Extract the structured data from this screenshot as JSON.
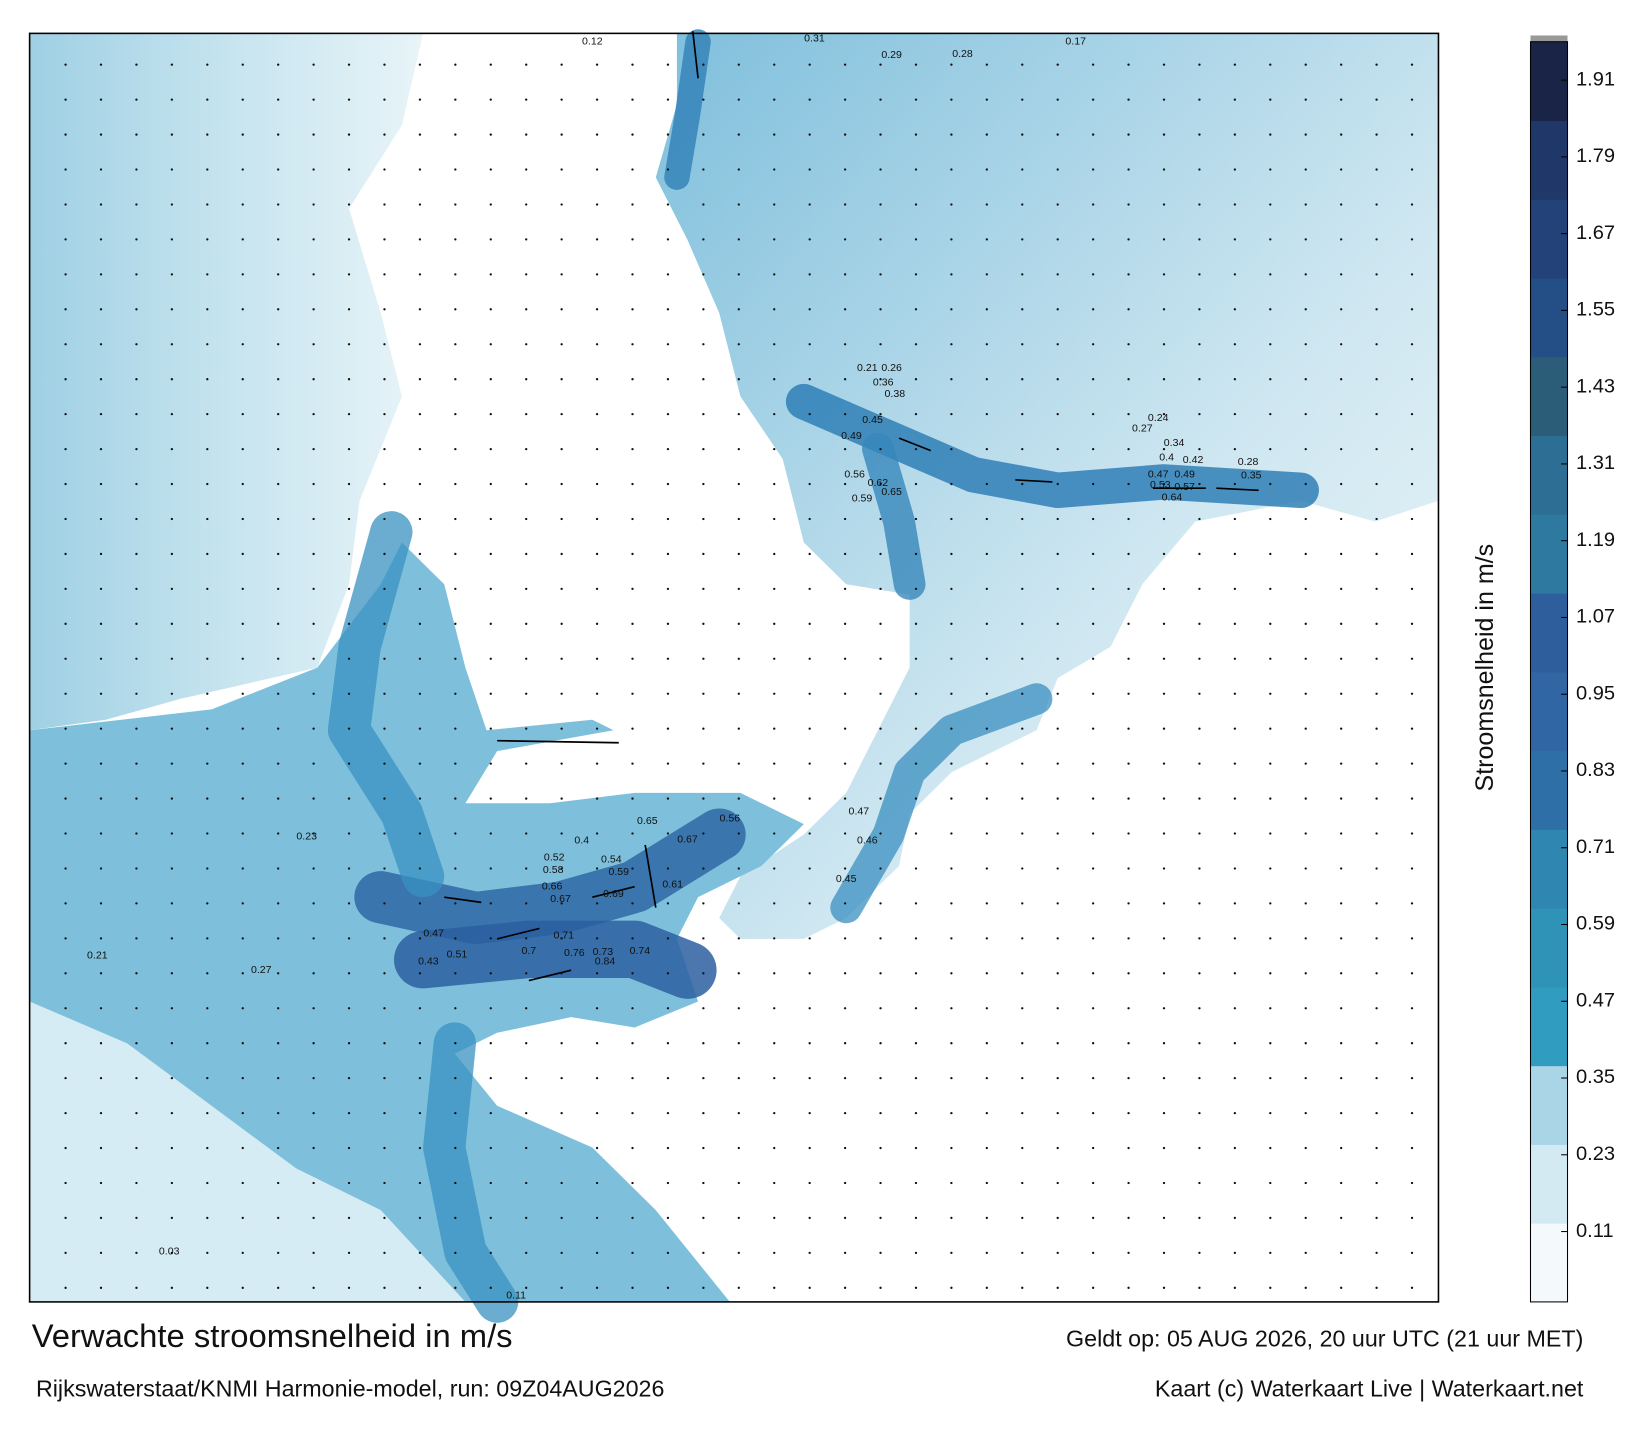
{
  "map": {
    "title": "Verwachte stroomsnelheid in m/s",
    "subtitle": "Rijkswaterstaat/KNMI Harmonie-model, run: 09Z04AUG2026",
    "valid": "Geldt op: 05 AUG 2026, 20 uur UTC (21 uur MET)",
    "credit": "Kaart (c) Waterkaart Live | Waterkaart.net",
    "colorbar": {
      "label": "Stroomsnelheid in m/s",
      "lim": [
        0,
        1.97
      ],
      "ticks": [
        0.11,
        0.23,
        0.35,
        0.47,
        0.59,
        0.71,
        0.83,
        0.95,
        1.07,
        1.19,
        1.31,
        1.43,
        1.55,
        1.67,
        1.79,
        1.91
      ],
      "colors": [
        "#f4f9fb",
        "#d4eaf2",
        "#a9d5e6",
        "#2f9cc0",
        "#2f93b8",
        "#2f86b0",
        "#2f6fa8",
        "#2f66a3",
        "#2f5e9c",
        "#2e79a0",
        "#2c6e94",
        "#2b5c78",
        "#234e86",
        "#23427a",
        "#1f3769",
        "#1a2447"
      ]
    },
    "speed_labels": [
      0.57,
      0.64,
      0.53,
      0.47,
      0.49,
      0.42,
      0.4,
      0.34,
      0.27,
      0.24,
      0.28,
      0.35,
      0.62,
      0.65,
      0.59,
      0.56,
      0.45,
      0.49,
      0.36,
      0.38,
      0.26,
      0.21,
      0.7,
      0.76,
      0.84,
      0.71,
      0.73,
      0.74,
      0.66,
      0.67,
      0.69,
      0.65,
      0.67,
      0.56,
      0.61,
      0.52,
      0.58,
      0.54,
      0.59,
      0.4,
      0.51,
      0.47,
      0.43,
      0.45,
      0.46,
      0.47,
      0.31,
      0.29,
      0.28,
      0.12,
      0.17,
      0.03,
      0.11,
      0.23,
      0.27,
      0.21
    ]
  }
}
